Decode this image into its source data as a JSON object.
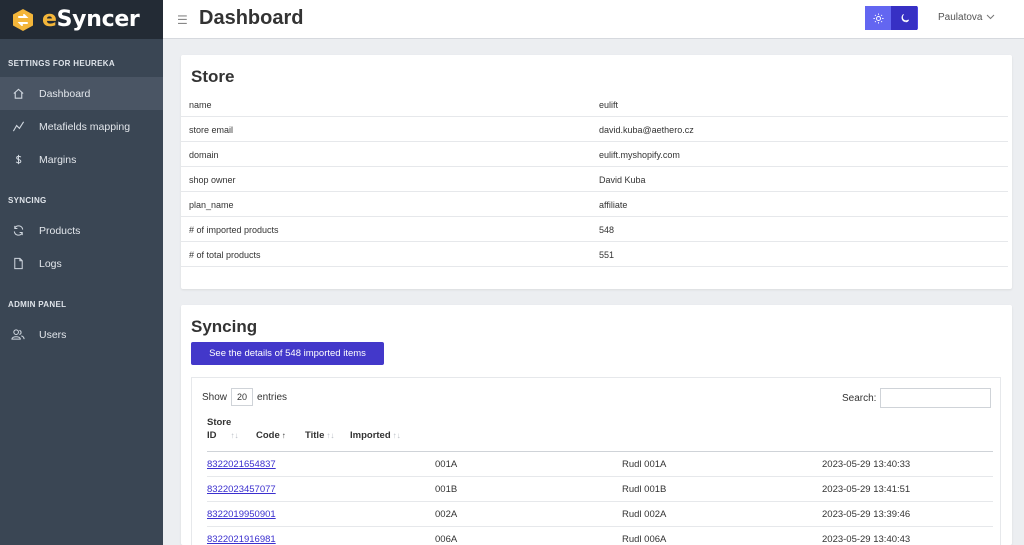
{
  "brand": {
    "prefix": "e",
    "rest": "Syncer"
  },
  "sidebar": {
    "sections": [
      {
        "title": "SETTINGS FOR HEUREKA"
      },
      {
        "title": "SYNCING"
      },
      {
        "title": "ADMIN PANEL"
      }
    ],
    "items": [
      {
        "label": "Dashboard",
        "icon": "home-icon",
        "active": true
      },
      {
        "label": "Metafields mapping",
        "icon": "chart-line-icon"
      },
      {
        "label": "Margins",
        "icon": "dollar-icon"
      },
      {
        "label": "Products",
        "icon": "sync-icon"
      },
      {
        "label": "Logs",
        "icon": "document-icon"
      },
      {
        "label": "Users",
        "icon": "users-icon"
      }
    ]
  },
  "header": {
    "title": "Dashboard",
    "user": "Paulatova"
  },
  "store": {
    "title": "Store",
    "rows": [
      {
        "key": "name",
        "value": "eulift"
      },
      {
        "key": "store email",
        "value": "david.kuba@aethero.cz"
      },
      {
        "key": "domain",
        "value": "eulift.myshopify.com"
      },
      {
        "key": "shop owner",
        "value": "David Kuba"
      },
      {
        "key": "plan_name",
        "value": "affiliate"
      },
      {
        "key": "# of imported products",
        "value": "548"
      },
      {
        "key": "# of total products",
        "value": "551"
      }
    ]
  },
  "syncing": {
    "title": "Syncing",
    "details_button": "See the details of 548 imported items",
    "show_label": "Show",
    "entries_value": "20",
    "entries_label": "entries",
    "search_label": "Search:",
    "columns": {
      "store_id_1": "Store",
      "store_id_2": "ID",
      "code": "Code",
      "title": "Title",
      "imported": "Imported"
    },
    "rows": [
      {
        "store_id": "8322021654837",
        "code": "001A",
        "title": "Rudl 001A",
        "imported": "2023-05-29 13:40:33"
      },
      {
        "store_id": "8322023457077",
        "code": "001B",
        "title": "Rudl 001B",
        "imported": "2023-05-29 13:41:51"
      },
      {
        "store_id": "8322019950901",
        "code": "002A",
        "title": "Rudl 002A",
        "imported": "2023-05-29 13:39:46"
      },
      {
        "store_id": "8322021916981",
        "code": "006A",
        "title": "Rudl 006A",
        "imported": "2023-05-29 13:40:43"
      }
    ]
  }
}
